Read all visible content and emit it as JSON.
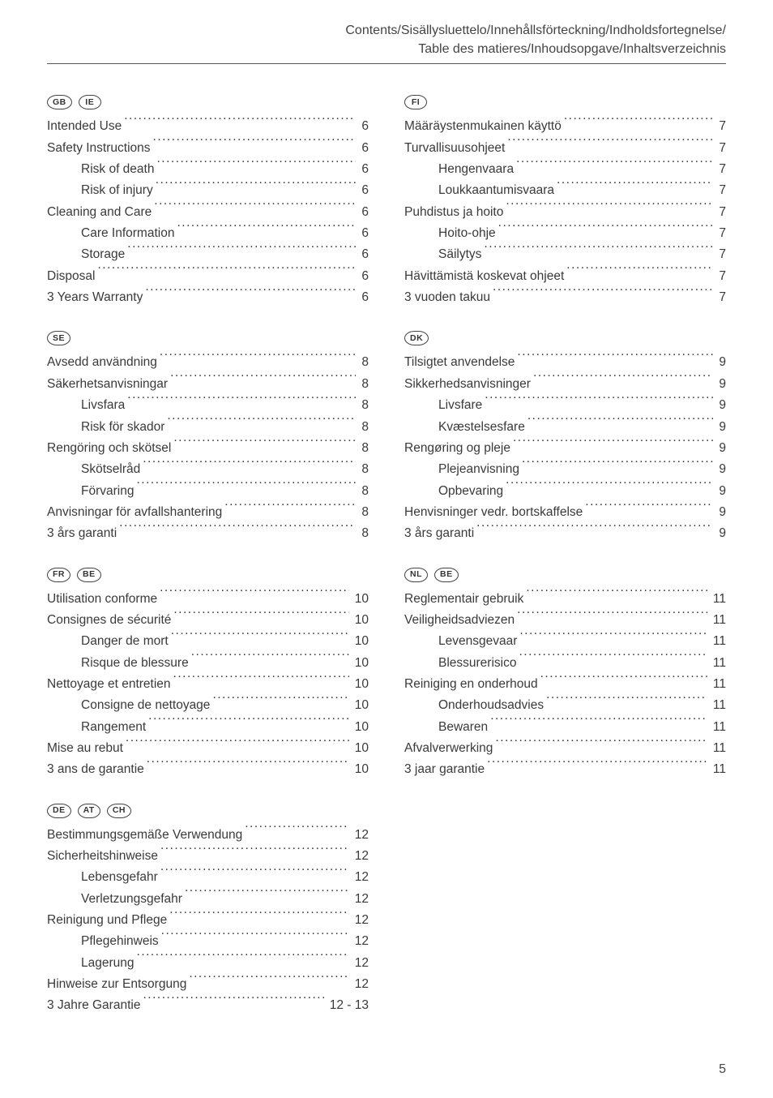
{
  "header": {
    "line1": "Contents/Sisällysluettelo/Innehållsförteckning/Indholdsfortegnelse/",
    "line2": "Table des matieres/Inhoudsopgave/Inhaltsverzeichnis"
  },
  "page_number": "5",
  "left": [
    {
      "countries": [
        "GB",
        "IE"
      ],
      "items": [
        {
          "label": "Intended Use",
          "page": "6",
          "sub": false
        },
        {
          "label": "Safety Instructions",
          "page": "6",
          "sub": false
        },
        {
          "label": "Risk of death",
          "page": "6",
          "sub": true
        },
        {
          "label": "Risk of injury",
          "page": "6",
          "sub": true
        },
        {
          "label": "Cleaning and Care",
          "page": "6",
          "sub": false
        },
        {
          "label": "Care Information",
          "page": "6",
          "sub": true
        },
        {
          "label": "Storage",
          "page": "6",
          "sub": true
        },
        {
          "label": "Disposal",
          "page": "6",
          "sub": false
        },
        {
          "label": "3 Years Warranty",
          "page": "6",
          "sub": false
        }
      ]
    },
    {
      "countries": [
        "SE"
      ],
      "items": [
        {
          "label": "Avsedd användning",
          "page": "8",
          "sub": false
        },
        {
          "label": "Säkerhetsanvisningar",
          "page": "8",
          "sub": false
        },
        {
          "label": "Livsfara",
          "page": "8",
          "sub": true
        },
        {
          "label": "Risk för skador",
          "page": "8",
          "sub": true
        },
        {
          "label": "Rengöring och skötsel",
          "page": "8",
          "sub": false
        },
        {
          "label": "Skötselråd",
          "page": "8",
          "sub": true
        },
        {
          "label": "Förvaring",
          "page": "8",
          "sub": true
        },
        {
          "label": "Anvisningar för avfallshantering",
          "page": "8",
          "sub": false
        },
        {
          "label": "3 års garanti",
          "page": "8",
          "sub": false
        }
      ]
    },
    {
      "countries": [
        "FR",
        "BE"
      ],
      "items": [
        {
          "label": "Utilisation conforme",
          "page": "10",
          "sub": false
        },
        {
          "label": "Consignes de sécurité",
          "page": "10",
          "sub": false
        },
        {
          "label": "Danger de mort",
          "page": "10",
          "sub": true
        },
        {
          "label": "Risque de blessure",
          "page": "10",
          "sub": true
        },
        {
          "label": "Nettoyage et entretien",
          "page": "10",
          "sub": false
        },
        {
          "label": "Consigne de nettoyage",
          "page": "10",
          "sub": true
        },
        {
          "label": "Rangement",
          "page": "10",
          "sub": true
        },
        {
          "label": "Mise au rebut",
          "page": "10",
          "sub": false
        },
        {
          "label": "3 ans de garantie",
          "page": "10",
          "sub": false
        }
      ]
    },
    {
      "countries": [
        "DE",
        "AT",
        "CH"
      ],
      "items": [
        {
          "label": "Bestimmungsgemäße Verwendung",
          "page": "12",
          "sub": false
        },
        {
          "label": "Sicherheitshinweise",
          "page": "12",
          "sub": false
        },
        {
          "label": "Lebensgefahr",
          "page": "12",
          "sub": true
        },
        {
          "label": "Verletzungsgefahr",
          "page": "12",
          "sub": true
        },
        {
          "label": "Reinigung und Pflege",
          "page": "12",
          "sub": false
        },
        {
          "label": "Pflegehinweis",
          "page": "12",
          "sub": true
        },
        {
          "label": "Lagerung",
          "page": "12",
          "sub": true
        },
        {
          "label": "Hinweise zur Entsorgung",
          "page": "12",
          "sub": false
        },
        {
          "label": "3 Jahre Garantie",
          "page": "12 - 13",
          "sub": false
        }
      ]
    }
  ],
  "right": [
    {
      "countries": [
        "FI"
      ],
      "items": [
        {
          "label": "Määräystenmukainen käyttö",
          "page": "7",
          "sub": false
        },
        {
          "label": "Turvallisuusohjeet",
          "page": "7",
          "sub": false
        },
        {
          "label": "Hengenvaara",
          "page": "7",
          "sub": true
        },
        {
          "label": "Loukkaantumisvaara",
          "page": "7",
          "sub": true
        },
        {
          "label": "Puhdistus ja hoito",
          "page": "7",
          "sub": false
        },
        {
          "label": "Hoito-ohje",
          "page": "7",
          "sub": true
        },
        {
          "label": "Säilytys",
          "page": "7",
          "sub": true
        },
        {
          "label": "Hävittämistä koskevat ohjeet",
          "page": "7",
          "sub": false
        },
        {
          "label": "3 vuoden takuu",
          "page": "7",
          "sub": false
        }
      ]
    },
    {
      "countries": [
        "DK"
      ],
      "items": [
        {
          "label": "Tilsigtet anvendelse",
          "page": "9",
          "sub": false
        },
        {
          "label": "Sikkerhedsanvisninger",
          "page": "9",
          "sub": false
        },
        {
          "label": "Livsfare",
          "page": "9",
          "sub": true
        },
        {
          "label": "Kvæstelsesfare",
          "page": "9",
          "sub": true
        },
        {
          "label": "Rengøring og pleje",
          "page": "9",
          "sub": false
        },
        {
          "label": "Plejeanvisning",
          "page": "9",
          "sub": true
        },
        {
          "label": "Opbevaring",
          "page": "9",
          "sub": true
        },
        {
          "label": "Henvisninger vedr. bortskaffelse",
          "page": "9",
          "sub": false
        },
        {
          "label": "3 års garanti",
          "page": "9",
          "sub": false
        }
      ]
    },
    {
      "countries": [
        "NL",
        "BE"
      ],
      "items": [
        {
          "label": "Reglementair gebruik",
          "page": "11",
          "sub": false
        },
        {
          "label": "Veiligheidsadviezen",
          "page": "11",
          "sub": false
        },
        {
          "label": "Levensgevaar",
          "page": "11",
          "sub": true
        },
        {
          "label": "Blessurerisico",
          "page": "11",
          "sub": true
        },
        {
          "label": "Reiniging en onderhoud",
          "page": "11",
          "sub": false
        },
        {
          "label": "Onderhoudsadvies",
          "page": "11",
          "sub": true
        },
        {
          "label": "Bewaren",
          "page": "11",
          "sub": true
        },
        {
          "label": "Afvalverwerking",
          "page": "11",
          "sub": false
        },
        {
          "label": "3 jaar garantie",
          "page": "11",
          "sub": false
        }
      ]
    }
  ]
}
